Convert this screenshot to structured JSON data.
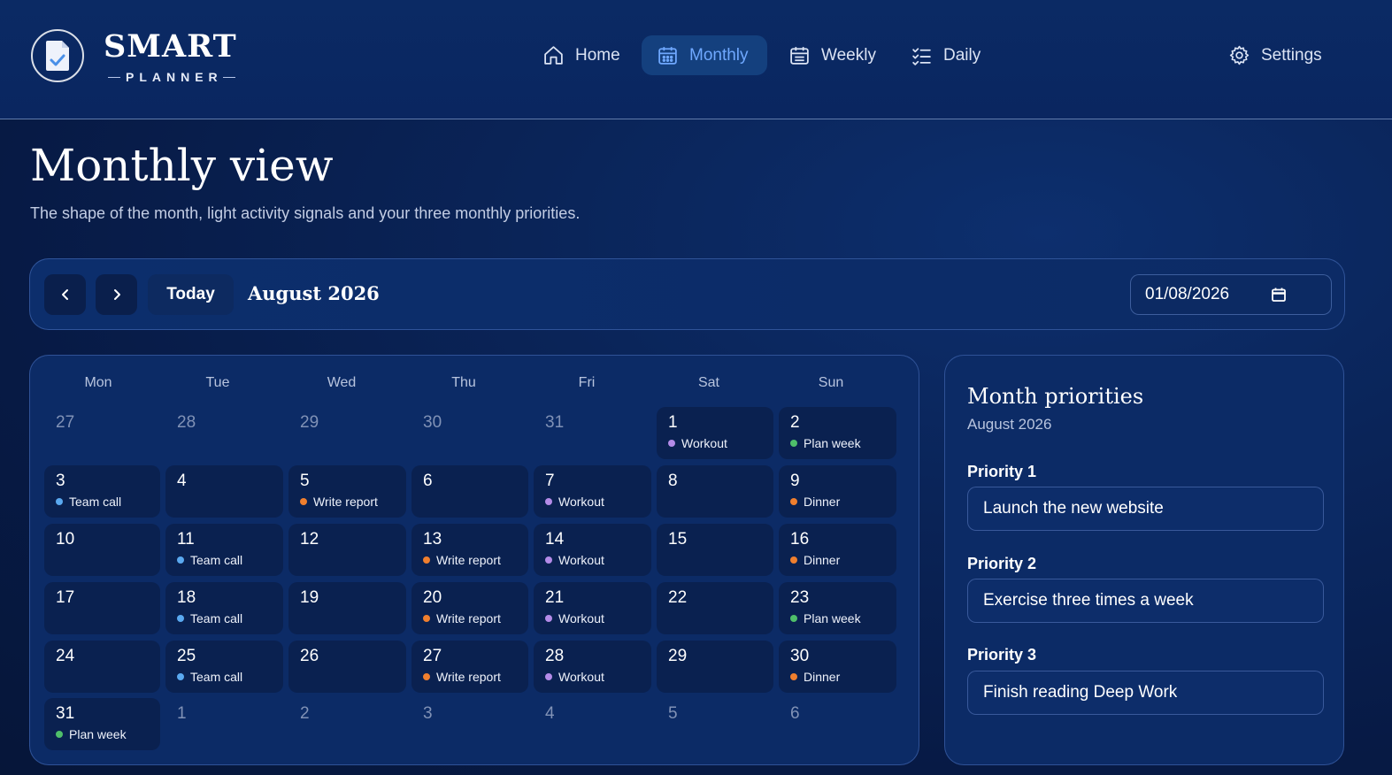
{
  "brand": {
    "title": "SMART",
    "subtitle": "PLANNER",
    "icon": "planner-document-check-icon"
  },
  "nav": {
    "items": [
      {
        "label": "Home",
        "icon": "home-icon",
        "active": false
      },
      {
        "label": "Monthly",
        "icon": "calendar-icon",
        "active": true
      },
      {
        "label": "Weekly",
        "icon": "calendar-icon",
        "active": false
      },
      {
        "label": "Daily",
        "icon": "checklist-icon",
        "active": false
      }
    ],
    "settings": {
      "label": "Settings",
      "icon": "gear-icon"
    }
  },
  "page": {
    "title": "Monthly view",
    "subtitle": "The shape of the month, light activity signals and your three monthly priorities."
  },
  "toolbar": {
    "prev_icon": "chevron-left-icon",
    "next_icon": "chevron-right-icon",
    "today_label": "Today",
    "month_label": "August 2026",
    "date_value": "01/08/2026",
    "date_icon": "calendar-icon"
  },
  "colors": {
    "accent": "#6fa8ff",
    "event_blue": "#5aa9f0",
    "event_orange": "#f07f2e",
    "event_purple": "#b48be8",
    "event_green": "#4fbf6a"
  },
  "calendar": {
    "weekdays": [
      "Mon",
      "Tue",
      "Wed",
      "Thu",
      "Fri",
      "Sat",
      "Sun"
    ],
    "weeks": [
      [
        {
          "day": "27",
          "current": false
        },
        {
          "day": "28",
          "current": false
        },
        {
          "day": "29",
          "current": false
        },
        {
          "day": "30",
          "current": false
        },
        {
          "day": "31",
          "current": false
        },
        {
          "day": "1",
          "current": true,
          "event": "Workout",
          "color": "purple"
        },
        {
          "day": "2",
          "current": true,
          "event": "Plan week",
          "color": "green"
        }
      ],
      [
        {
          "day": "3",
          "current": true,
          "event": "Team call",
          "color": "blue"
        },
        {
          "day": "4",
          "current": true
        },
        {
          "day": "5",
          "current": true,
          "event": "Write report",
          "color": "orange"
        },
        {
          "day": "6",
          "current": true
        },
        {
          "day": "7",
          "current": true,
          "event": "Workout",
          "color": "purple"
        },
        {
          "day": "8",
          "current": true
        },
        {
          "day": "9",
          "current": true,
          "event": "Dinner",
          "color": "orange"
        }
      ],
      [
        {
          "day": "10",
          "current": true
        },
        {
          "day": "11",
          "current": true,
          "event": "Team call",
          "color": "blue"
        },
        {
          "day": "12",
          "current": true
        },
        {
          "day": "13",
          "current": true,
          "event": "Write report",
          "color": "orange"
        },
        {
          "day": "14",
          "current": true,
          "event": "Workout",
          "color": "purple"
        },
        {
          "day": "15",
          "current": true
        },
        {
          "day": "16",
          "current": true,
          "event": "Dinner",
          "color": "orange"
        }
      ],
      [
        {
          "day": "17",
          "current": true
        },
        {
          "day": "18",
          "current": true,
          "event": "Team call",
          "color": "blue"
        },
        {
          "day": "19",
          "current": true
        },
        {
          "day": "20",
          "current": true,
          "event": "Write report",
          "color": "orange"
        },
        {
          "day": "21",
          "current": true,
          "event": "Workout",
          "color": "purple"
        },
        {
          "day": "22",
          "current": true
        },
        {
          "day": "23",
          "current": true,
          "event": "Plan week",
          "color": "green"
        }
      ],
      [
        {
          "day": "24",
          "current": true
        },
        {
          "day": "25",
          "current": true,
          "event": "Team call",
          "color": "blue"
        },
        {
          "day": "26",
          "current": true
        },
        {
          "day": "27",
          "current": true,
          "event": "Write report",
          "color": "orange"
        },
        {
          "day": "28",
          "current": true,
          "event": "Workout",
          "color": "purple"
        },
        {
          "day": "29",
          "current": true
        },
        {
          "day": "30",
          "current": true,
          "event": "Dinner",
          "color": "orange"
        }
      ],
      [
        {
          "day": "31",
          "current": true,
          "event": "Plan week",
          "color": "green"
        },
        {
          "day": "1",
          "current": false
        },
        {
          "day": "2",
          "current": false
        },
        {
          "day": "3",
          "current": false
        },
        {
          "day": "4",
          "current": false
        },
        {
          "day": "5",
          "current": false
        },
        {
          "day": "6",
          "current": false
        }
      ]
    ]
  },
  "priorities": {
    "title": "Month priorities",
    "month": "August 2026",
    "items": [
      {
        "label": "Priority 1",
        "value": "Launch the new website"
      },
      {
        "label": "Priority 2",
        "value": "Exercise three times a week"
      },
      {
        "label": "Priority 3",
        "value": "Finish reading Deep Work"
      }
    ]
  }
}
